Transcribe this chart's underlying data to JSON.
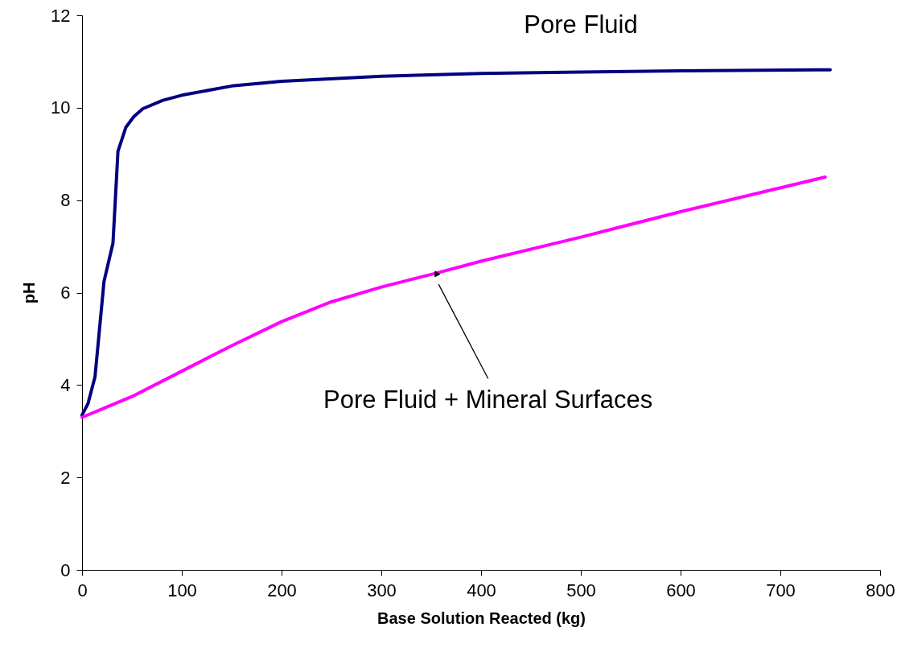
{
  "chart_data": {
    "type": "line",
    "xlabel": "Base Solution Reacted (kg)",
    "ylabel": "pH",
    "xlim": [
      0,
      800
    ],
    "xticks": [
      0,
      100,
      200,
      300,
      400,
      500,
      600,
      700,
      800
    ],
    "ylim": [
      0,
      12
    ],
    "yticks": [
      0,
      2,
      4,
      6,
      8,
      10,
      12
    ],
    "grid": false,
    "legend": false,
    "marker": "none",
    "line_style": "solid",
    "series": [
      {
        "name": "Pore Fluid",
        "color": "#000080",
        "x": [
          0,
          6,
          13,
          22,
          31,
          36,
          44,
          52,
          61,
          81,
          100,
          150,
          200,
          300,
          400,
          500,
          600,
          750
        ],
        "values": [
          3.35,
          3.6,
          4.18,
          6.24,
          7.07,
          9.06,
          9.58,
          9.81,
          9.98,
          10.16,
          10.27,
          10.47,
          10.57,
          10.68,
          10.74,
          10.77,
          10.8,
          10.82
        ]
      },
      {
        "name": "Pore Fluid + Mineral Surfaces",
        "color": "#ff00ff",
        "x": [
          0,
          50,
          100,
          150,
          200,
          250,
          300,
          355,
          400,
          500,
          600,
          745
        ],
        "values": [
          3.3,
          3.75,
          4.3,
          4.85,
          5.37,
          5.8,
          6.12,
          6.42,
          6.68,
          7.2,
          7.75,
          8.5
        ]
      }
    ]
  }
}
